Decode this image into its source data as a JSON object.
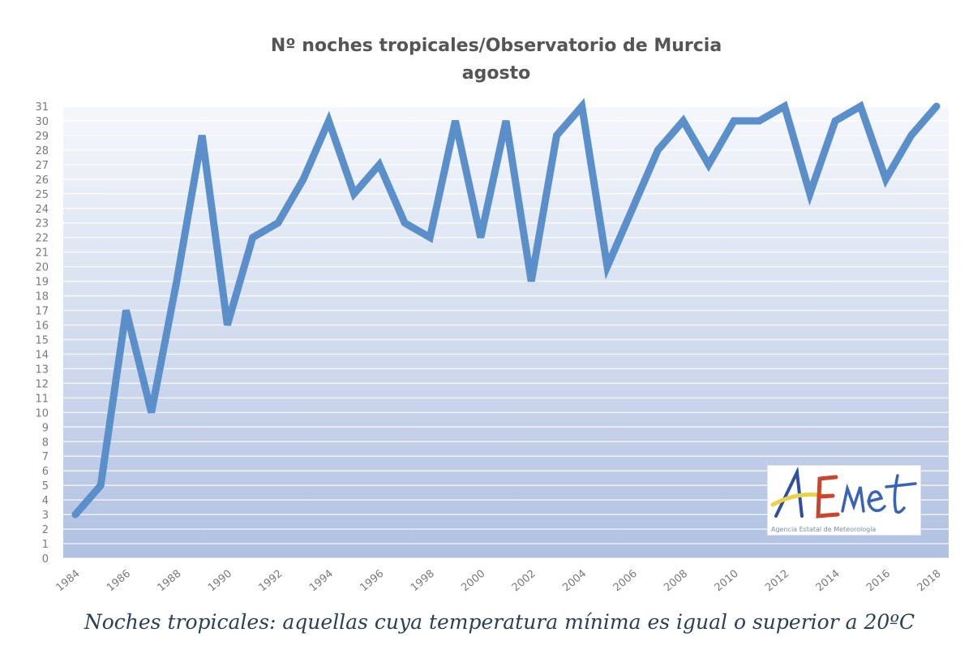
{
  "chart_data": {
    "type": "line",
    "title": "Nº noches tropicales/Observatorio de Murcia",
    "subtitle": "agosto",
    "xlabel": "",
    "ylabel": "",
    "ylim": [
      0,
      31
    ],
    "yticks": [
      0,
      1,
      2,
      3,
      4,
      5,
      6,
      7,
      8,
      9,
      10,
      11,
      12,
      13,
      14,
      15,
      16,
      17,
      18,
      19,
      20,
      21,
      22,
      23,
      24,
      25,
      26,
      27,
      28,
      29,
      30,
      31
    ],
    "xtick_labels": [
      "1984",
      "1986",
      "1988",
      "1990",
      "1992",
      "1994",
      "1996",
      "1998",
      "2000",
      "2002",
      "2004",
      "2006",
      "2008",
      "2010",
      "2012",
      "2014",
      "2016",
      "2018"
    ],
    "grid": true,
    "legend": null,
    "x": [
      1984,
      1985,
      1986,
      1987,
      1988,
      1989,
      1990,
      1991,
      1992,
      1993,
      1994,
      1995,
      1996,
      1997,
      1998,
      1999,
      2000,
      2001,
      2002,
      2003,
      2004,
      2005,
      2006,
      2007,
      2008,
      2009,
      2010,
      2011,
      2012,
      2013,
      2014,
      2015,
      2016,
      2017,
      2018
    ],
    "series": [
      {
        "name": "Nº noches tropicales (agosto)",
        "color": "#5b8fc9",
        "values": [
          3,
          5,
          17,
          10,
          19,
          29,
          16,
          22,
          23,
          26,
          30,
          25,
          27,
          23,
          22,
          30,
          22,
          30,
          19,
          29,
          31,
          20,
          24,
          28,
          30,
          27,
          30,
          30,
          31,
          25,
          30,
          31,
          26,
          29,
          31
        ]
      }
    ]
  },
  "logo": {
    "text": "AEMet",
    "subtitle": "Agencia Estatal de Meteorología"
  },
  "caption": "Noches tropicales: aquellas cuya temperatura mínima es igual o superior a 20ºC",
  "colors": {
    "line": "#5b8fc9",
    "plot_top": "#f4f6fb",
    "plot_bottom": "#b3c3e3",
    "gridline": "#ffffff",
    "title": "#555555",
    "caption": "#2b3f55"
  }
}
